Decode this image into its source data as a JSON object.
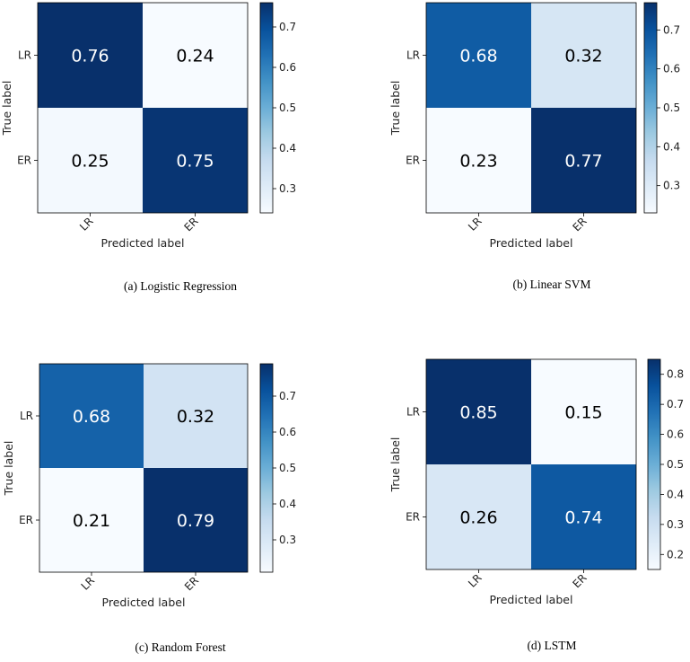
{
  "chart_data": [
    {
      "type": "heatmap",
      "id": "a",
      "caption": "(a) Logistic Regression",
      "rows": [
        "LR",
        "ER"
      ],
      "cols": [
        "LR",
        "ER"
      ],
      "values": [
        [
          0.76,
          0.24
        ],
        [
          0.25,
          0.75
        ]
      ],
      "labels": [
        [
          "0.76",
          "0.24"
        ],
        [
          "0.25",
          "0.75"
        ]
      ],
      "xlabel": "Predicted label",
      "ylabel": "True label",
      "colorbar": {
        "min": 0.24,
        "max": 0.76,
        "ticks": [
          0.3,
          0.4,
          0.5,
          0.6,
          0.7
        ],
        "tick_labels": [
          "0.3",
          "0.4",
          "0.5",
          "0.6",
          "0.7"
        ]
      }
    },
    {
      "type": "heatmap",
      "id": "b",
      "caption": "(b) Linear SVM",
      "rows": [
        "LR",
        "ER"
      ],
      "cols": [
        "LR",
        "ER"
      ],
      "values": [
        [
          0.68,
          0.32
        ],
        [
          0.23,
          0.77
        ]
      ],
      "labels": [
        [
          "0.68",
          "0.32"
        ],
        [
          "0.23",
          "0.77"
        ]
      ],
      "xlabel": "Predicted label",
      "ylabel": "True label",
      "colorbar": {
        "min": 0.23,
        "max": 0.77,
        "ticks": [
          0.3,
          0.4,
          0.5,
          0.6,
          0.7
        ],
        "tick_labels": [
          "0.3",
          "0.4",
          "0.5",
          "0.6",
          "0.7"
        ]
      }
    },
    {
      "type": "heatmap",
      "id": "c",
      "caption": "(c) Random Forest",
      "rows": [
        "LR",
        "ER"
      ],
      "cols": [
        "LR",
        "ER"
      ],
      "values": [
        [
          0.68,
          0.32
        ],
        [
          0.21,
          0.79
        ]
      ],
      "labels": [
        [
          "0.68",
          "0.32"
        ],
        [
          "0.21",
          "0.79"
        ]
      ],
      "xlabel": "Predicted label",
      "ylabel": "True label",
      "colorbar": {
        "min": 0.21,
        "max": 0.79,
        "ticks": [
          0.3,
          0.4,
          0.5,
          0.6,
          0.7
        ],
        "tick_labels": [
          "0.3",
          "0.4",
          "0.5",
          "0.6",
          "0.7"
        ]
      }
    },
    {
      "type": "heatmap",
      "id": "d",
      "caption": "(d) LSTM",
      "rows": [
        "LR",
        "ER"
      ],
      "cols": [
        "LR",
        "ER"
      ],
      "values": [
        [
          0.85,
          0.15
        ],
        [
          0.26,
          0.74
        ]
      ],
      "labels": [
        [
          "0.85",
          "0.15"
        ],
        [
          "0.26",
          "0.74"
        ]
      ],
      "xlabel": "Predicted label",
      "ylabel": "True label",
      "colorbar": {
        "min": 0.15,
        "max": 0.85,
        "ticks": [
          0.2,
          0.3,
          0.4,
          0.5,
          0.6,
          0.7,
          0.8
        ],
        "tick_labels": [
          "0.2",
          "0.3",
          "0.4",
          "0.5",
          "0.6",
          "0.7",
          "0.8"
        ]
      }
    }
  ]
}
